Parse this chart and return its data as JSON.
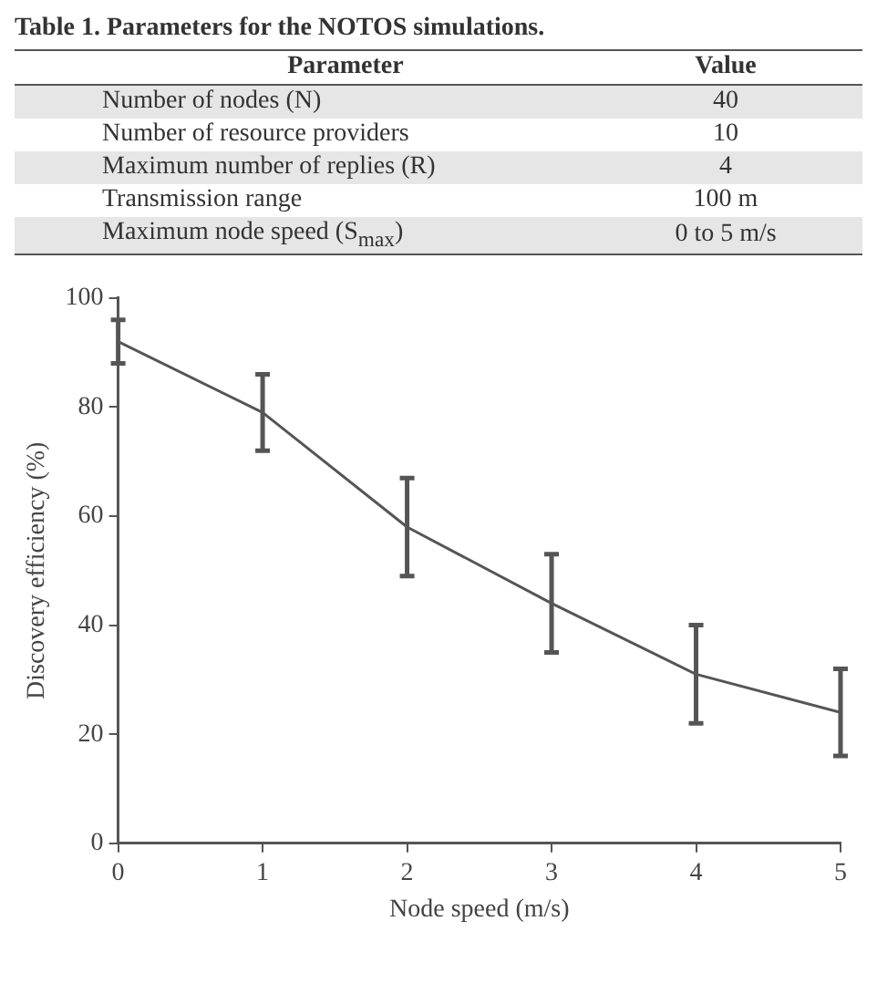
{
  "chart_data": {
    "type": "line",
    "xlabel": "Node speed (m/s)",
    "ylabel": "Discovery efficiency (%)",
    "x": [
      0,
      1,
      2,
      3,
      4,
      5
    ],
    "series": [
      {
        "color": "#555555",
        "values": [
          92,
          79,
          58,
          44,
          31,
          24
        ],
        "errors": [
          4,
          7,
          9,
          9,
          9,
          8
        ]
      }
    ],
    "xlim": [
      0,
      5
    ],
    "xticks": [
      0,
      1,
      2,
      3,
      4,
      5
    ],
    "ylim": [
      0,
      100
    ],
    "yticks": [
      0,
      20,
      40,
      60,
      80,
      100
    ],
    "marker": "none",
    "legend": false,
    "annotations": [
      "Table 1. Parameters for the NOTOS simulations.",
      "Parameter",
      "Value",
      "Number of nodes (N)",
      "40",
      "Number of resource providers",
      "10",
      "Maximum number of replies (R)",
      "4",
      "Transmission range",
      "100 m",
      "Maximum node speed (S$_{max}$)",
      "0 to 5 m/s"
    ]
  }
}
